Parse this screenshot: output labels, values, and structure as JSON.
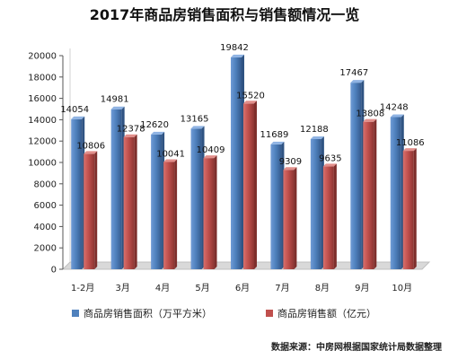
{
  "chart_data": {
    "type": "bar",
    "title": "2017年商品房销售面积与销售额情况一览",
    "categories": [
      "1-2月",
      "3月",
      "4月",
      "5月",
      "6月",
      "7月",
      "8月",
      "9月",
      "10月"
    ],
    "series": [
      {
        "name": "商品房销售面积（万平方米）",
        "color": "#4f81bd",
        "values": [
          14054,
          14981,
          12620,
          13165,
          19842,
          11689,
          12188,
          17467,
          14248
        ],
        "labels": [
          "14054",
          "14981",
          "12620",
          "13165",
          "19842",
          "11689",
          "12188",
          "17467",
          "14248"
        ]
      },
      {
        "name": "商品房销售额（亿元）",
        "color": "#c0504d",
        "values": [
          10806,
          12378,
          10041,
          10409,
          15520,
          9309,
          9635,
          13808,
          11086
        ],
        "labels": [
          "10806",
          "12378",
          "10041",
          "10409",
          "15520",
          "9309",
          "9635",
          "13808",
          "11086"
        ]
      }
    ],
    "y_ticks": [
      "0",
      "2000",
      "4000",
      "6000",
      "8000",
      "10000",
      "12000",
      "14000",
      "16000",
      "18000",
      "20000"
    ],
    "ylim": [
      0,
      20000
    ],
    "grid": false,
    "legend_position": "bottom",
    "source_note": "数据来源：中房网根据国家统计局数据整理"
  }
}
